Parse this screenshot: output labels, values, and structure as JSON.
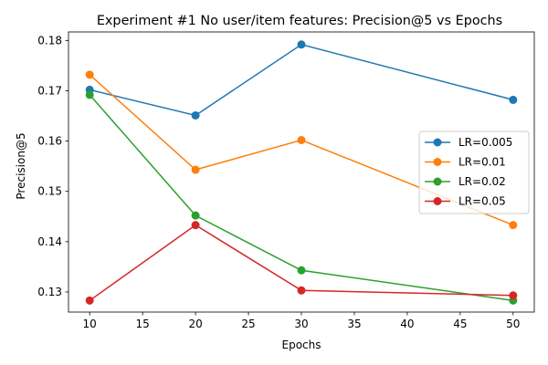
{
  "chart_data": {
    "type": "line",
    "title": "Experiment #1 No user/item features: Precision@5 vs Epochs",
    "xlabel": "Epochs",
    "ylabel": "Precision@5",
    "x": [
      10,
      20,
      30,
      50
    ],
    "xlim": [
      8,
      52
    ],
    "ylim": [
      0.126,
      0.1817
    ],
    "xticks": [
      10,
      15,
      20,
      25,
      30,
      35,
      40,
      45,
      50
    ],
    "yticks": [
      0.13,
      0.14,
      0.15,
      0.16,
      0.17,
      0.18
    ],
    "grid": false,
    "legend_position": "center-right",
    "series": [
      {
        "name": "LR=0.005",
        "color": "#1f77b4",
        "values": [
          0.1702,
          0.1651,
          0.1792,
          0.1682
        ]
      },
      {
        "name": "LR=0.01",
        "color": "#ff7f0e",
        "values": [
          0.1732,
          0.1543,
          0.1602,
          0.1433
        ]
      },
      {
        "name": "LR=0.02",
        "color": "#2ca02c",
        "values": [
          0.1692,
          0.1452,
          0.1343,
          0.1283
        ]
      },
      {
        "name": "LR=0.05",
        "color": "#d62728",
        "values": [
          0.1283,
          0.1433,
          0.1303,
          0.1293
        ]
      }
    ]
  }
}
